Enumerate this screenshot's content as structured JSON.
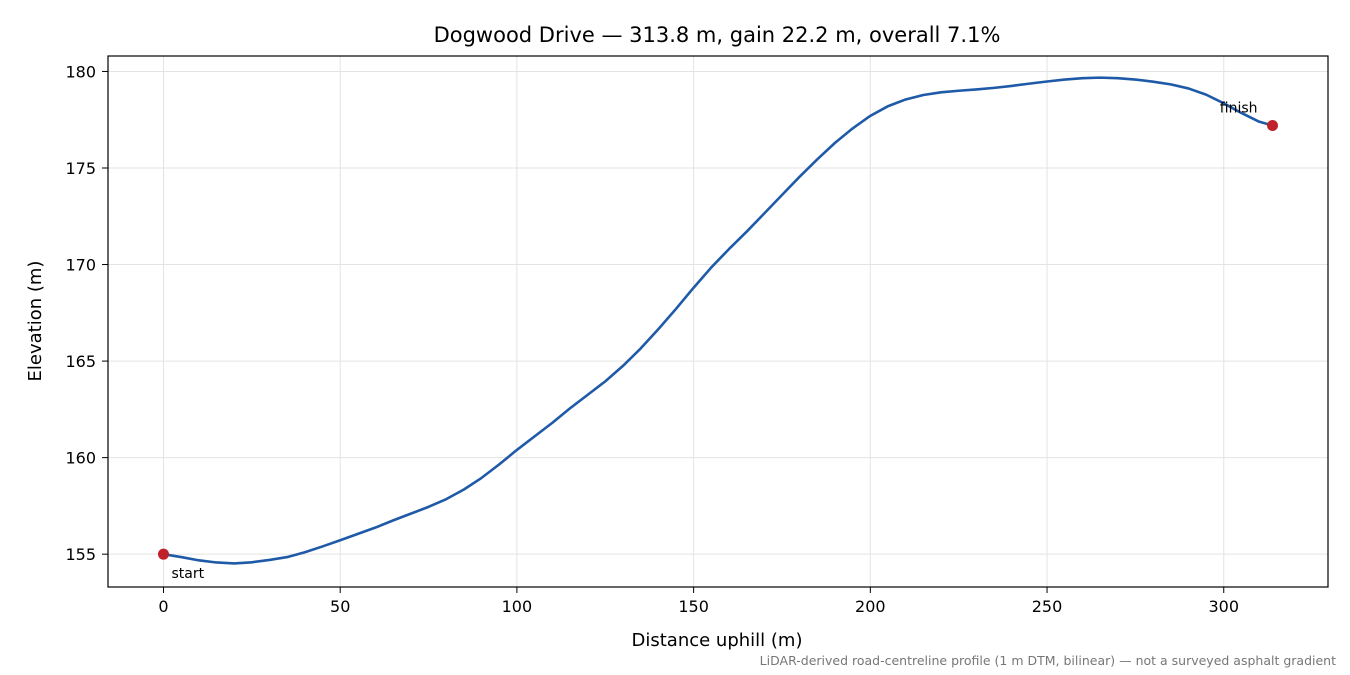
{
  "chart_data": {
    "type": "line",
    "title": "Dogwood Drive — 313.8 m, gain 22.2 m, overall 7.1%",
    "xlabel": "Distance uphill (m)",
    "ylabel": "Elevation (m)",
    "xlim": [
      -15.7,
      329.5
    ],
    "ylim": [
      153.3,
      180.8
    ],
    "xticks": [
      0,
      50,
      100,
      150,
      200,
      250,
      300
    ],
    "yticks": [
      155,
      160,
      165,
      170,
      175,
      180
    ],
    "xtick_labels": [
      "0",
      "50",
      "100",
      "150",
      "200",
      "250",
      "300"
    ],
    "ytick_labels": [
      "155",
      "160",
      "165",
      "170",
      "175",
      "180"
    ],
    "grid": true,
    "line_color": "#1f5aa8",
    "marker_color": "#c0202a",
    "series": [
      {
        "x": [
          0,
          5,
          10,
          15,
          20,
          25,
          30,
          35,
          40,
          45,
          50,
          55,
          60,
          65,
          70,
          75,
          80,
          85,
          90,
          95,
          100,
          105,
          110,
          115,
          120,
          125,
          130,
          135,
          140,
          145,
          150,
          155,
          160,
          165,
          170,
          175,
          180,
          185,
          190,
          195,
          200,
          205,
          210,
          215,
          220,
          225,
          230,
          235,
          240,
          245,
          250,
          255,
          260,
          265,
          270,
          275,
          280,
          285,
          290,
          295,
          300,
          305,
          310,
          313.8
        ],
        "y": [
          155.0,
          154.85,
          154.68,
          154.57,
          154.52,
          154.58,
          154.7,
          154.85,
          155.1,
          155.4,
          155.72,
          156.05,
          156.38,
          156.75,
          157.1,
          157.45,
          157.85,
          158.35,
          158.95,
          159.65,
          160.4,
          161.1,
          161.8,
          162.55,
          163.25,
          163.95,
          164.75,
          165.65,
          166.65,
          167.7,
          168.8,
          169.85,
          170.8,
          171.7,
          172.65,
          173.6,
          174.55,
          175.45,
          176.3,
          177.05,
          177.7,
          178.2,
          178.55,
          178.78,
          178.92,
          179.0,
          179.07,
          179.15,
          179.25,
          179.37,
          179.48,
          179.58,
          179.65,
          179.68,
          179.65,
          179.58,
          179.47,
          179.33,
          179.12,
          178.8,
          178.35,
          177.85,
          177.4,
          177.2
        ]
      }
    ],
    "annotations": [
      {
        "text": "start",
        "x": 0,
        "y": 155.0
      },
      {
        "text": "finish",
        "x": 313.8,
        "y": 177.2
      }
    ],
    "footnote": "LiDAR-derived road-centreline profile (1 m DTM, bilinear) — not a surveyed asphalt gradient"
  }
}
